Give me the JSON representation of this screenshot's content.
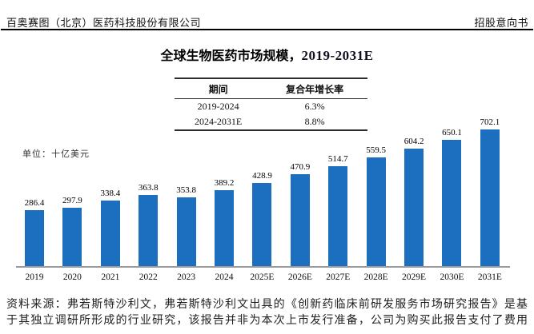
{
  "header": {
    "company": "百奥赛图（北京）医药科技股份有限公司",
    "doc_type": "招股意向书"
  },
  "figure": {
    "title_zh": "全球生物医药市场规模，",
    "title_range": "2019-2031E",
    "unit_label": "单位：十亿美元"
  },
  "cagr_table": {
    "headers": [
      "期间",
      "复合年增长率"
    ],
    "rows": [
      [
        "2019-2024",
        "6.3%"
      ],
      [
        "2024-2031E",
        "8.8%"
      ]
    ]
  },
  "chart_data": {
    "type": "bar",
    "title": "全球生物医药市场规模，2019-2031E",
    "unit": "十亿美元",
    "xlabel": "",
    "ylabel": "单位：十亿美元",
    "categories": [
      "2019",
      "2020",
      "2021",
      "2022",
      "2023",
      "2024",
      "2025E",
      "2026E",
      "2027E",
      "2028E",
      "2029E",
      "2030E",
      "2031E"
    ],
    "values": [
      286.4,
      297.9,
      338.4,
      363.8,
      353.8,
      389.2,
      428.9,
      470.9,
      514.7,
      559.5,
      604.2,
      650.1,
      702.1
    ],
    "bar_color": "#1B6FBE",
    "ylim": [
      0,
      720
    ],
    "grid": false,
    "value_labels": true,
    "legend": "none"
  },
  "source": {
    "lines": [
      "资料来源：弗若斯特沙利文，弗若斯特沙利文出具的《创新药临床前研发服务市场研究报告》是基",
      "于其独立调研所形成的行业研究，该报告并非为本次上市发行准备，公司为购买此报告支付了费用"
    ]
  }
}
